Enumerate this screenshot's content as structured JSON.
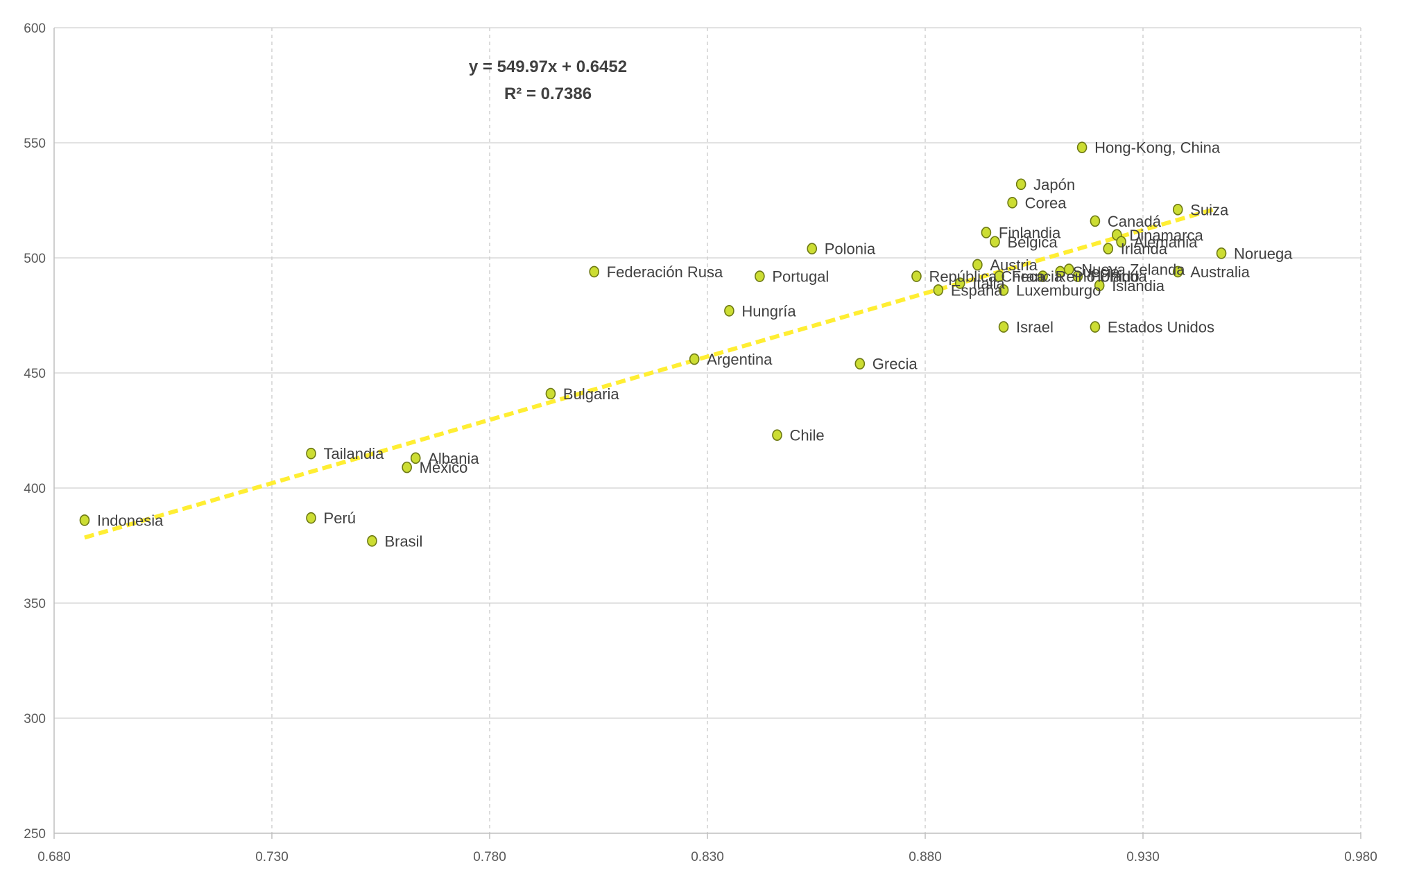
{
  "chart_data": {
    "type": "scatter",
    "title": "",
    "xlabel": "",
    "ylabel": "",
    "xlim": [
      0.68,
      0.98
    ],
    "ylim": [
      250,
      600
    ],
    "x_ticks": [
      "0.680",
      "0.730",
      "0.780",
      "0.830",
      "0.880",
      "0.930",
      "0.980"
    ],
    "y_ticks": [
      "600",
      "550",
      "500",
      "450",
      "400",
      "350",
      "300",
      "250"
    ],
    "grid": "dashed-vertical, solid-horizontal",
    "colors": {
      "marker_fill": "#ccdd33",
      "marker_stroke": "#6e7a14",
      "trendline": "#ffee33",
      "grid_h": "#d9d9d9",
      "grid_v": "#d0d0d0",
      "axis": "#bfbfbf"
    },
    "trendline": {
      "slope": 549.97,
      "intercept": 0.6452,
      "x_range": [
        0.687,
        0.947
      ],
      "equation_text": "y = 549.97x + 0.6452",
      "r2_text": "R² = 0.7386"
    },
    "points": [
      {
        "label": "Indonesia",
        "x": 0.687,
        "y": 386
      },
      {
        "label": "Tailandia",
        "x": 0.739,
        "y": 415
      },
      {
        "label": "Perú",
        "x": 0.739,
        "y": 387
      },
      {
        "label": "Brasil",
        "x": 0.753,
        "y": 377
      },
      {
        "label": "Albania",
        "x": 0.763,
        "y": 413
      },
      {
        "label": "México",
        "x": 0.761,
        "y": 409
      },
      {
        "label": "Bulgaria",
        "x": 0.794,
        "y": 441
      },
      {
        "label": "Federación Rusa",
        "x": 0.804,
        "y": 494
      },
      {
        "label": "Argentina",
        "x": 0.827,
        "y": 456
      },
      {
        "label": "Hungría",
        "x": 0.835,
        "y": 477
      },
      {
        "label": "Portugal",
        "x": 0.842,
        "y": 492
      },
      {
        "label": "Chile",
        "x": 0.846,
        "y": 423
      },
      {
        "label": "Polonia",
        "x": 0.854,
        "y": 504
      },
      {
        "label": "Grecia",
        "x": 0.865,
        "y": 454
      },
      {
        "label": "República Checa",
        "x": 0.878,
        "y": 492
      },
      {
        "label": "España",
        "x": 0.883,
        "y": 486
      },
      {
        "label": "Italia",
        "x": 0.888,
        "y": 489
      },
      {
        "label": "Austria",
        "x": 0.892,
        "y": 497
      },
      {
        "label": "Finlandia",
        "x": 0.894,
        "y": 511
      },
      {
        "label": "Bélgica",
        "x": 0.896,
        "y": 507
      },
      {
        "label": "Francia",
        "x": 0.897,
        "y": 492
      },
      {
        "label": "Luxemburgo",
        "x": 0.898,
        "y": 486
      },
      {
        "label": "Israel",
        "x": 0.898,
        "y": 470
      },
      {
        "label": "Corea",
        "x": 0.9,
        "y": 524
      },
      {
        "label": "Japón",
        "x": 0.902,
        "y": 532
      },
      {
        "label": "Reino Unido",
        "x": 0.907,
        "y": 492
      },
      {
        "label": "Suecia",
        "x": 0.911,
        "y": 494
      },
      {
        "label": "Nueva Zelanda",
        "x": 0.913,
        "y": 495
      },
      {
        "label": "Holanda",
        "x": 0.915,
        "y": 492
      },
      {
        "label": "Hong-Kong, China",
        "x": 0.916,
        "y": 548
      },
      {
        "label": "Canadá",
        "x": 0.919,
        "y": 516
      },
      {
        "label": "Estados Unidos",
        "x": 0.919,
        "y": 470
      },
      {
        "label": "Islandia",
        "x": 0.92,
        "y": 488
      },
      {
        "label": "Irlanda",
        "x": 0.922,
        "y": 504
      },
      {
        "label": "Dinamarca",
        "x": 0.924,
        "y": 510
      },
      {
        "label": "Alemania",
        "x": 0.925,
        "y": 507
      },
      {
        "label": "Suiza",
        "x": 0.938,
        "y": 521
      },
      {
        "label": "Australia",
        "x": 0.938,
        "y": 494
      },
      {
        "label": "Noruega",
        "x": 0.948,
        "y": 502
      }
    ]
  }
}
